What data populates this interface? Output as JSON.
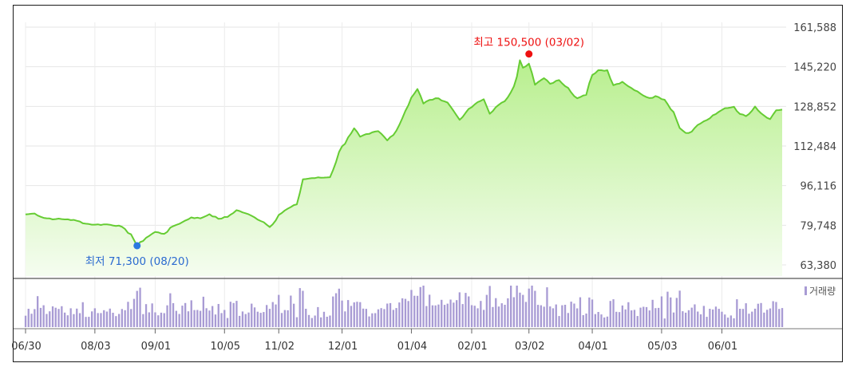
{
  "chart_data": {
    "type": "area",
    "y_ticks": [
      "161,588",
      "145,220",
      "128,852",
      "112,484",
      "96,116",
      "79,748",
      "63,380"
    ],
    "y_tick_values": [
      161588,
      145220,
      128852,
      112484,
      96116,
      79748,
      63380
    ],
    "ylim": [
      63380,
      161588
    ],
    "x_ticks": [
      "06/30",
      "08/03",
      "09/01",
      "10/05",
      "11/02",
      "12/01",
      "01/04",
      "02/01",
      "03/02",
      "04/01",
      "05/03",
      "06/01"
    ],
    "x_tick_index": [
      0,
      23,
      43,
      66,
      84,
      105,
      128,
      148,
      167,
      188,
      211,
      231
    ],
    "n_points": 252,
    "price_keypoints": [
      [
        0,
        84200
      ],
      [
        3,
        84600
      ],
      [
        6,
        82800
      ],
      [
        10,
        82300
      ],
      [
        14,
        82200
      ],
      [
        17,
        81600
      ],
      [
        20,
        80400
      ],
      [
        23,
        80000
      ],
      [
        27,
        80100
      ],
      [
        31,
        79600
      ],
      [
        35,
        76000
      ],
      [
        37,
        71300
      ],
      [
        40,
        74600
      ],
      [
        43,
        77000
      ],
      [
        46,
        76200
      ],
      [
        49,
        79400
      ],
      [
        52,
        81000
      ],
      [
        55,
        83000
      ],
      [
        58,
        82600
      ],
      [
        61,
        84300
      ],
      [
        64,
        82400
      ],
      [
        67,
        83200
      ],
      [
        70,
        86000
      ],
      [
        73,
        84700
      ],
      [
        76,
        83000
      ],
      [
        79,
        81000
      ],
      [
        81,
        79000
      ],
      [
        84,
        84000
      ],
      [
        87,
        86600
      ],
      [
        90,
        88400
      ],
      [
        92,
        98700
      ],
      [
        95,
        99200
      ],
      [
        98,
        99400
      ],
      [
        101,
        99600
      ],
      [
        104,
        110000
      ],
      [
        107,
        116000
      ],
      [
        109,
        119800
      ],
      [
        111,
        116300
      ],
      [
        114,
        117500
      ],
      [
        117,
        118600
      ],
      [
        120,
        114800
      ],
      [
        123,
        118800
      ],
      [
        126,
        127000
      ],
      [
        128,
        132500
      ],
      [
        130,
        136000
      ],
      [
        132,
        130000
      ],
      [
        134,
        131500
      ],
      [
        137,
        132200
      ],
      [
        140,
        130400
      ],
      [
        142,
        127000
      ],
      [
        144,
        123300
      ],
      [
        146,
        126200
      ],
      [
        149,
        129700
      ],
      [
        152,
        131800
      ],
      [
        154,
        125800
      ],
      [
        156,
        128500
      ],
      [
        159,
        131000
      ],
      [
        161,
        134700
      ],
      [
        163,
        141100
      ],
      [
        164,
        147900
      ],
      [
        165,
        144800
      ],
      [
        167,
        146500
      ],
      [
        169,
        137800
      ],
      [
        172,
        140500
      ],
      [
        174,
        138200
      ],
      [
        177,
        139700
      ],
      [
        180,
        136500
      ],
      [
        183,
        132200
      ],
      [
        186,
        133600
      ],
      [
        188,
        141800
      ],
      [
        190,
        143800
      ],
      [
        193,
        143800
      ],
      [
        195,
        137600
      ],
      [
        198,
        139000
      ],
      [
        201,
        136400
      ],
      [
        204,
        134100
      ],
      [
        207,
        132300
      ],
      [
        209,
        133100
      ],
      [
        212,
        131600
      ],
      [
        215,
        126500
      ],
      [
        217,
        119900
      ],
      [
        219,
        117900
      ],
      [
        221,
        118400
      ],
      [
        223,
        121200
      ],
      [
        226,
        123200
      ],
      [
        229,
        125700
      ],
      [
        232,
        128100
      ],
      [
        235,
        128700
      ],
      [
        237,
        125700
      ],
      [
        239,
        124800
      ],
      [
        242,
        128800
      ],
      [
        244,
        126000
      ],
      [
        247,
        123600
      ],
      [
        249,
        127200
      ],
      [
        251,
        127500
      ]
    ],
    "high": {
      "label": "최고 150,500 (03/02)",
      "value": 150500,
      "index": 167
    },
    "low": {
      "label": "최저 71,300 (08/20)",
      "value": 71300,
      "index": 37
    },
    "volume_legend": "거래량",
    "colors": {
      "line": "#66cc33",
      "fill_top": "#b8ef8e",
      "fill_bottom": "#f5fdf0",
      "volume_bar": "#a89bd4",
      "high_marker": "#ee1111",
      "low_marker": "#2b79e0",
      "low_text": "#2b6ad0"
    }
  }
}
